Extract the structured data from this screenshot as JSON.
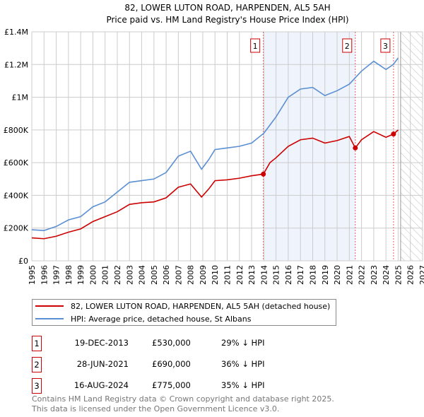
{
  "chart_data": {
    "type": "line",
    "title": "82, LOWER LUTON ROAD, HARPENDEN, AL5 5AH",
    "subtitle": "Price paid vs. HM Land Registry's House Price Index (HPI)",
    "xlim": [
      1995,
      2027
    ],
    "ylim": [
      0,
      1400000
    ],
    "x_ticks": [
      "1995",
      "1996",
      "1997",
      "1998",
      "1999",
      "2000",
      "2001",
      "2002",
      "2003",
      "2004",
      "2005",
      "2006",
      "2007",
      "2008",
      "2009",
      "2010",
      "2011",
      "2012",
      "2013",
      "2014",
      "2015",
      "2016",
      "2017",
      "2018",
      "2019",
      "2020",
      "2021",
      "2022",
      "2023",
      "2024",
      "2025",
      "2026",
      "2027"
    ],
    "y_ticks": [
      {
        "v": 0,
        "label": "£0"
      },
      {
        "v": 200000,
        "label": "£200K"
      },
      {
        "v": 400000,
        "label": "£400K"
      },
      {
        "v": 600000,
        "label": "£600K"
      },
      {
        "v": 800000,
        "label": "£800K"
      },
      {
        "v": 1000000,
        "label": "£1M"
      },
      {
        "v": 1200000,
        "label": "£1.2M"
      },
      {
        "v": 1400000,
        "label": "£1.4M"
      }
    ],
    "series": [
      {
        "name": "82, LOWER LUTON ROAD, HARPENDEN, AL5 5AH (detached house)",
        "color": "#cc0000",
        "x": [
          1995,
          1996,
          1997,
          1998,
          1999,
          2000,
          2001,
          2002,
          2003,
          2004,
          2005,
          2006,
          2007,
          2008,
          2008.9,
          2009.5,
          2010,
          2011,
          2012,
          2013,
          2013.96,
          2014.5,
          2015,
          2016,
          2017,
          2018,
          2019,
          2020,
          2021,
          2021.49,
          2022,
          2023,
          2024,
          2024.62,
          2025
        ],
        "y": [
          140000,
          135000,
          150000,
          175000,
          195000,
          240000,
          270000,
          300000,
          345000,
          355000,
          360000,
          385000,
          450000,
          470000,
          390000,
          440000,
          490000,
          495000,
          505000,
          520000,
          530000,
          600000,
          630000,
          700000,
          740000,
          750000,
          720000,
          735000,
          760000,
          690000,
          740000,
          790000,
          755000,
          775000,
          800000
        ]
      },
      {
        "name": "HPI: Average price, detached house, St Albans",
        "color": "#5b8fd4",
        "x": [
          1995,
          1996,
          1997,
          1998,
          1999,
          2000,
          2001,
          2002,
          2003,
          2004,
          2005,
          2006,
          2007,
          2008,
          2008.9,
          2009.5,
          2010,
          2011,
          2012,
          2013,
          2014,
          2015,
          2016,
          2017,
          2018,
          2019,
          2020,
          2021,
          2022,
          2023,
          2024,
          2024.6,
          2025
        ],
        "y": [
          190000,
          185000,
          210000,
          250000,
          270000,
          330000,
          360000,
          420000,
          480000,
          490000,
          500000,
          540000,
          640000,
          670000,
          560000,
          620000,
          680000,
          690000,
          700000,
          720000,
          780000,
          880000,
          1000000,
          1050000,
          1060000,
          1010000,
          1040000,
          1080000,
          1160000,
          1220000,
          1170000,
          1200000,
          1240000
        ]
      }
    ],
    "sales": [
      {
        "n": "1",
        "x": 2013.96,
        "date": "19-DEC-2013",
        "price": "£530,000",
        "v": 530000,
        "hpi": "29% ↓ HPI"
      },
      {
        "n": "2",
        "x": 2021.49,
        "date": "28-JUN-2021",
        "price": "£690,000",
        "v": 690000,
        "hpi": "36% ↓ HPI"
      },
      {
        "n": "3",
        "x": 2024.62,
        "date": "16-AUG-2024",
        "price": "£775,000",
        "v": 775000,
        "hpi": "35% ↓ HPI"
      }
    ],
    "forecast_start": 2025.2
  },
  "footer": [
    "Contains HM Land Registry data © Crown copyright and database right 2025.",
    "This data is licensed under the Open Government Licence v3.0."
  ]
}
